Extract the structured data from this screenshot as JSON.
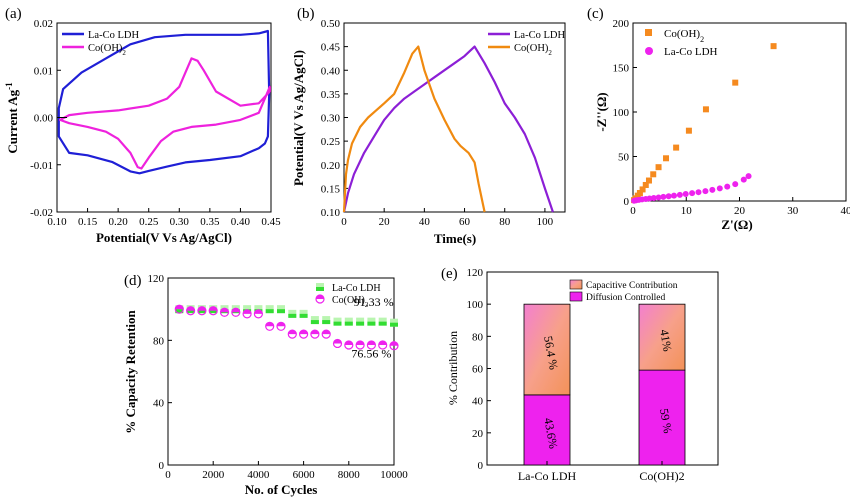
{
  "chart_data": [
    {
      "panel": "(a)",
      "type": "line",
      "xlabel": "Potential(V Vs Ag/AgCl)",
      "ylabel": "Current Ag",
      "ylabel_sup": "-1",
      "xlim": [
        0.1,
        0.45
      ],
      "ylim": [
        -0.02,
        0.02
      ],
      "xticks": [
        "0.10",
        "0.15",
        "0.20",
        "0.25",
        "0.30",
        "0.35",
        "0.40",
        "0.45"
      ],
      "yticks": [
        "-0.02",
        "-0.01",
        "0.00",
        "0.01",
        "0.02"
      ],
      "legend": [
        {
          "label": "La-Co LDH",
          "sub": "",
          "color": "#1f1fd6"
        },
        {
          "label": "Co(OH)",
          "sub": "2",
          "color": "#ee22dd"
        }
      ],
      "series": [
        {
          "name": "La-Co LDH",
          "color": "#1f1fd6",
          "closed": true,
          "x": [
            0.103,
            0.103,
            0.11,
            0.14,
            0.18,
            0.22,
            0.26,
            0.31,
            0.36,
            0.4,
            0.43,
            0.445,
            0.447,
            0.445,
            0.44,
            0.43,
            0.4,
            0.35,
            0.31,
            0.28,
            0.25,
            0.235,
            0.22,
            0.19,
            0.15,
            0.12,
            0.103
          ],
          "y": [
            -0.004,
            0.002,
            0.006,
            0.0095,
            0.0125,
            0.0155,
            0.017,
            0.0175,
            0.0175,
            0.0175,
            0.0178,
            0.0183,
            0.005,
            -0.004,
            -0.0055,
            -0.0065,
            -0.0082,
            -0.009,
            -0.0095,
            -0.0104,
            -0.0113,
            -0.0118,
            -0.0114,
            -0.0094,
            -0.008,
            -0.0075,
            -0.004
          ]
        },
        {
          "name": "Co(OH)2",
          "color": "#ee22dd",
          "closed": true,
          "x": [
            0.105,
            0.12,
            0.15,
            0.2,
            0.25,
            0.28,
            0.3,
            0.31,
            0.32,
            0.33,
            0.34,
            0.36,
            0.4,
            0.43,
            0.448,
            0.448,
            0.43,
            0.4,
            0.36,
            0.32,
            0.29,
            0.27,
            0.25,
            0.238,
            0.232,
            0.22,
            0.2,
            0.18,
            0.15,
            0.12,
            0.105
          ],
          "y": [
            -0.0005,
            0.0005,
            0.001,
            0.0015,
            0.0025,
            0.004,
            0.0065,
            0.0095,
            0.0125,
            0.012,
            0.01,
            0.0055,
            0.0025,
            0.003,
            0.0055,
            0.0065,
            0.001,
            -0.0005,
            -0.0015,
            -0.002,
            -0.003,
            -0.005,
            -0.0085,
            -0.0108,
            -0.0105,
            -0.0075,
            -0.0045,
            -0.003,
            -0.002,
            -0.0012,
            -0.0005
          ]
        }
      ]
    },
    {
      "panel": "(b)",
      "type": "line",
      "xlabel": "Time(s)",
      "ylabel": "Potential(V Vs Ag/AgCl)",
      "xlim": [
        0,
        110
      ],
      "ylim": [
        0.1,
        0.5
      ],
      "xticks": [
        "0",
        "20",
        "40",
        "60",
        "80",
        "100"
      ],
      "yticks": [
        "0.10",
        "0.15",
        "0.20",
        "0.25",
        "0.30",
        "0.35",
        "0.40",
        "0.45",
        "0.50"
      ],
      "legend": [
        {
          "label": "La-Co LDH",
          "sub": "",
          "color": "#8c1fd6"
        },
        {
          "label": "Co(OH)",
          "sub": "2",
          "color": "#f08a10"
        }
      ],
      "series": [
        {
          "name": "La-Co LDH",
          "color": "#8c1fd6",
          "x": [
            0,
            2,
            5,
            10,
            15,
            20,
            25,
            30,
            35,
            40,
            45,
            50,
            55,
            60,
            65,
            70,
            75,
            80,
            85,
            90,
            95,
            100,
            104
          ],
          "y": [
            0.1,
            0.14,
            0.18,
            0.225,
            0.26,
            0.295,
            0.32,
            0.34,
            0.355,
            0.37,
            0.385,
            0.4,
            0.415,
            0.43,
            0.45,
            0.415,
            0.375,
            0.33,
            0.3,
            0.265,
            0.215,
            0.15,
            0.1
          ]
        },
        {
          "name": "Co(OH)2",
          "color": "#f08a10",
          "x": [
            0,
            1,
            2,
            4,
            8,
            12,
            16,
            20,
            25,
            30,
            34,
            37,
            40,
            45,
            50,
            55,
            58,
            62,
            65,
            67,
            69,
            70
          ],
          "y": [
            0.1,
            0.18,
            0.21,
            0.245,
            0.28,
            0.3,
            0.315,
            0.33,
            0.35,
            0.395,
            0.435,
            0.45,
            0.4,
            0.34,
            0.295,
            0.255,
            0.24,
            0.225,
            0.205,
            0.16,
            0.12,
            0.1
          ]
        }
      ]
    },
    {
      "panel": "(c)",
      "type": "scatter",
      "xlabel": "Z'(Ω)",
      "ylabel": "-Z''(Ω)",
      "xlim": [
        0,
        40
      ],
      "ylim": [
        0,
        200
      ],
      "xticks": [
        "0",
        "10",
        "20",
        "30",
        "40"
      ],
      "yticks": [
        "0",
        "50",
        "100",
        "150",
        "200"
      ],
      "legend": [
        {
          "label": "Co(OH)",
          "sub": "2",
          "color": "#f58a1f",
          "marker": "square"
        },
        {
          "label": "La-Co LDH",
          "sub": "",
          "color": "#ee22ee",
          "marker": "circle"
        }
      ],
      "series": [
        {
          "name": "Co(OH)2",
          "color": "#f58a1f",
          "marker": "square",
          "x": [
            0.2,
            0.5,
            0.9,
            1.3,
            1.8,
            2.4,
            3.0,
            3.8,
            4.8,
            6.2,
            8.1,
            10.5,
            13.7,
            19.2,
            26.4
          ],
          "y": [
            1,
            3,
            6,
            9,
            13,
            18,
            23,
            30,
            38,
            48,
            60,
            79,
            103,
            133,
            174
          ]
        },
        {
          "name": "La-Co LDH",
          "color": "#ee22ee",
          "marker": "circle",
          "x": [
            0.2,
            0.6,
            1.1,
            1.7,
            2.4,
            3.1,
            3.9,
            4.8,
            5.7,
            6.7,
            7.7,
            8.8,
            9.9,
            11.1,
            12.3,
            13.6,
            14.9,
            16.3,
            17.7,
            19.2,
            20.8,
            21.7
          ],
          "y": [
            0.3,
            0.8,
            1.3,
            1.8,
            2.3,
            2.8,
            3.4,
            4.0,
            4.7,
            5.4,
            6.1,
            6.9,
            7.8,
            8.8,
            9.9,
            11.1,
            12.5,
            14.2,
            16.2,
            19.0,
            24.0,
            28.0
          ]
        }
      ]
    },
    {
      "panel": "(d)",
      "type": "scatter",
      "xlabel": "No. of Cycles",
      "ylabel": "% Capacity Retention",
      "xlim": [
        0,
        10000
      ],
      "ylim": [
        0,
        120
      ],
      "xticks": [
        "0",
        "2000",
        "4000",
        "6000",
        "8000",
        "10000"
      ],
      "yticks": [
        "0",
        "40",
        "80",
        "120"
      ],
      "legend": [
        {
          "label": "La-Co LDH",
          "sub": "",
          "color": "#33dd33",
          "marker": "square"
        },
        {
          "label": "Co(OH)",
          "sub": "2",
          "color": "#ee22ee",
          "marker": "half-circle"
        }
      ],
      "annotations": [
        {
          "text": "91.33 %",
          "x": 9100,
          "y": 102
        },
        {
          "text": "76.56 %",
          "x": 9000,
          "y": 69
        }
      ],
      "series": [
        {
          "name": "La-Co LDH",
          "color": "#33dd33",
          "marker": "square",
          "x": [
            500,
            1000,
            1500,
            2000,
            2500,
            3000,
            3500,
            4000,
            4500,
            5000,
            5500,
            6000,
            6500,
            7000,
            7500,
            8000,
            8500,
            9000,
            9500,
            10000
          ],
          "y": [
            100,
            100,
            100,
            100,
            100,
            100,
            100,
            100,
            100,
            100,
            97,
            97,
            93,
            93,
            92,
            92,
            92,
            92,
            92,
            91.33
          ]
        },
        {
          "name": "Co(OH)2",
          "color": "#ee22ee",
          "marker": "half-circle",
          "x": [
            500,
            1000,
            1500,
            2000,
            2500,
            3000,
            3500,
            4000,
            4500,
            5000,
            5500,
            6000,
            6500,
            7000,
            7500,
            8000,
            8500,
            9000,
            9500,
            10000
          ],
          "y": [
            100,
            99,
            99,
            99,
            98,
            98,
            97,
            97,
            89,
            89,
            84,
            84,
            84,
            84,
            78,
            77,
            77,
            77,
            77,
            76.56
          ]
        }
      ]
    },
    {
      "panel": "(e)",
      "type": "bar",
      "ylabel": "% Contribution",
      "ylim": [
        0,
        120
      ],
      "yticks": [
        "0",
        "20",
        "40",
        "60",
        "80",
        "100",
        "120"
      ],
      "categories": [
        "La-Co LDH",
        "Co(OH)2"
      ],
      "legend": [
        {
          "label": "Capacitive Contribution",
          "color": "#f7a08a"
        },
        {
          "label": "Diffusion Controlled",
          "color": "#ee22ee"
        }
      ],
      "series": [
        {
          "name": "Diffusion Controlled",
          "color": "#ee22ee",
          "values": [
            43.6,
            59
          ],
          "labels": [
            "43.6%",
            "59 %"
          ]
        },
        {
          "name": "Capacitive Contribution",
          "color": "#f7a08a",
          "values": [
            56.4,
            41
          ],
          "labels": [
            "56.4 %",
            "41%"
          ]
        }
      ]
    }
  ]
}
